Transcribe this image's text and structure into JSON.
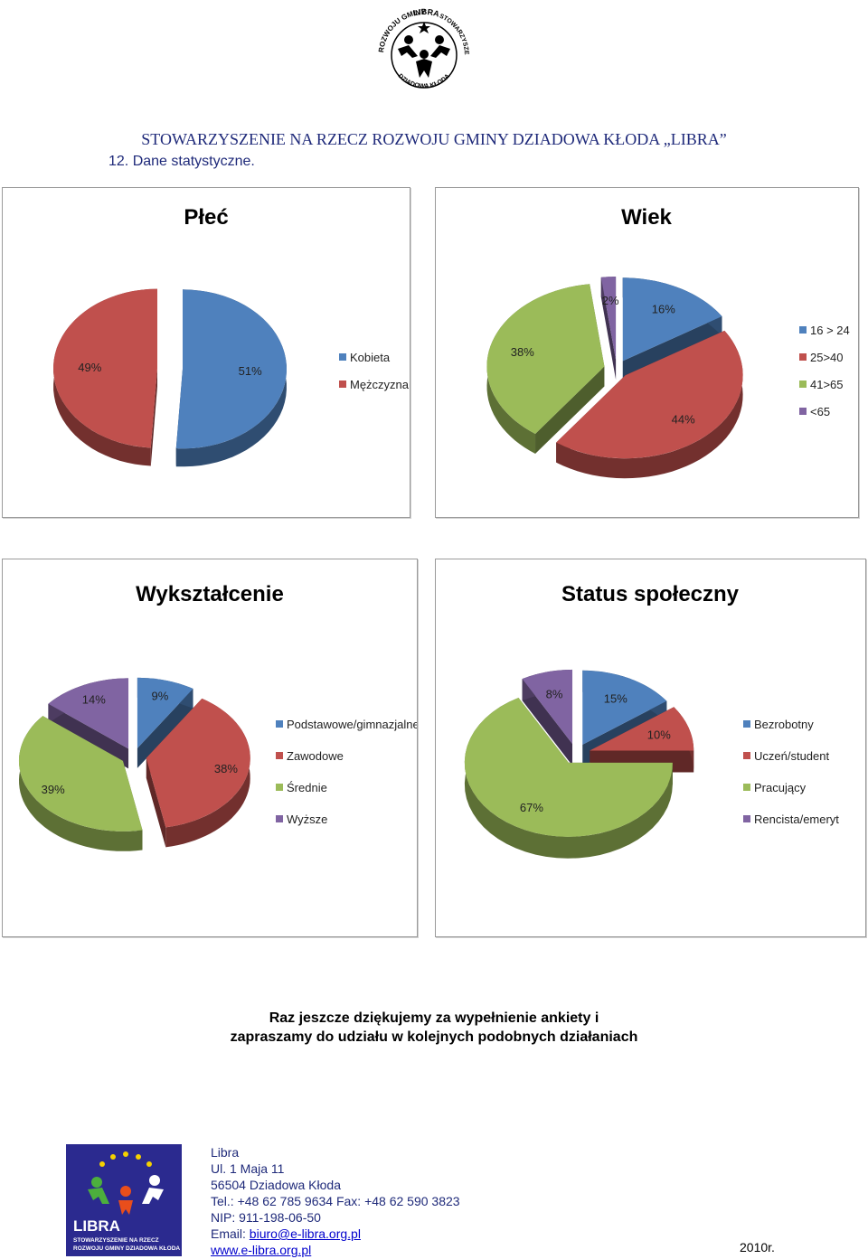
{
  "logo_top": {
    "arc_text_top": "LIBRA",
    "arc_text_left": "ROZWOJU GMINY",
    "arc_text_right": "STOWARZYSZENIE",
    "arc_text_bottom": "DZIADOWA KŁODA"
  },
  "header": {
    "org_title": "STOWARZYSZENIE NA RZECZ ROZWOJU GMINY DZIADOWA KŁODA „LIBRA”",
    "section_title": "12. Dane statystyczne."
  },
  "chart_data": [
    {
      "type": "pie",
      "title": "Płeć",
      "categories": [
        "Kobieta",
        "Mężczyzna"
      ],
      "values": [
        51,
        49
      ],
      "value_labels": [
        "51%",
        "49%"
      ],
      "colors": [
        "#4f81bd",
        "#c0504d"
      ],
      "legend": "right"
    },
    {
      "type": "pie",
      "title": "Wiek",
      "categories": [
        "16 > 24",
        "25>40",
        "41>65",
        "<65"
      ],
      "values": [
        16,
        44,
        38,
        2
      ],
      "value_labels": [
        "16%",
        "44%",
        "38%",
        "2%"
      ],
      "colors": [
        "#4f81bd",
        "#c0504d",
        "#9bbb59",
        "#8064a2"
      ],
      "legend": "right"
    },
    {
      "type": "pie",
      "title": "Wykształcenie",
      "categories": [
        "Podstawowe/gimnazjalne",
        "Zawodowe",
        "Średnie",
        "Wyższe"
      ],
      "values": [
        9,
        38,
        39,
        14
      ],
      "value_labels": [
        "9%",
        "38%",
        "39%",
        "14%"
      ],
      "colors": [
        "#4f81bd",
        "#c0504d",
        "#9bbb59",
        "#8064a2"
      ],
      "legend": "right"
    },
    {
      "type": "pie",
      "title": "Status społeczny",
      "categories": [
        "Bezrobotny",
        "Uczeń/student",
        "Pracujący",
        "Rencista/emeryt"
      ],
      "values": [
        15,
        10,
        67,
        8
      ],
      "value_labels": [
        "15%",
        "10%",
        "67%",
        "8%"
      ],
      "colors": [
        "#4f81bd",
        "#c0504d",
        "#9bbb59",
        "#8064a2"
      ],
      "legend": "right"
    }
  ],
  "thanks": {
    "line1": "Raz jeszcze dziękujemy za wypełnienie ankiety i",
    "line2": "zapraszamy do udziału w kolejnych podobnych działaniach"
  },
  "logo_bottom": {
    "name": "LIBRA",
    "line1": "STOWARZYSZENIE NA RZECZ",
    "line2": "ROZWOJU GMINY DZIADOWA KŁODA"
  },
  "contact": {
    "name": "Libra",
    "street": "Ul. 1 Maja 11",
    "city": "56504 Dziadowa Kłoda",
    "phone": "Tel.: +48 62 785 9634 Fax: +48 62 590 3823",
    "nip": "NIP: 911-198-06-50",
    "email_label": "Email: ",
    "email": "biuro@e-libra.org.pl",
    "website": "www.e-libra.org.pl"
  },
  "footer": {
    "year": "2010r."
  }
}
